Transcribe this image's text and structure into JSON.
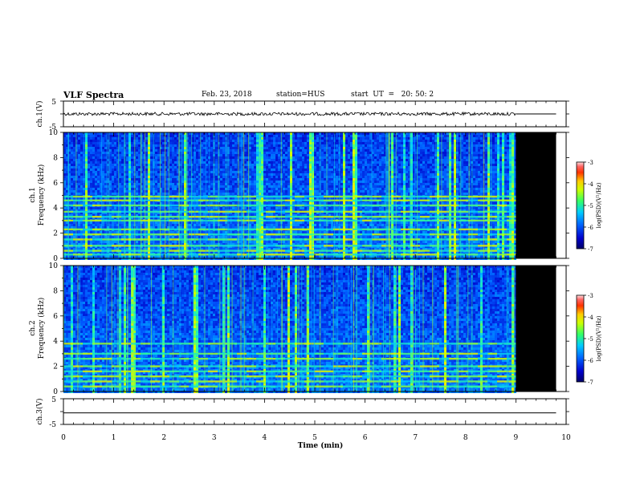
{
  "header": {
    "title": "VLF Spectra",
    "date": "Feb. 23, 2018",
    "station": "station=HUS",
    "start_time": "start  UT  =   20: 50: 2"
  },
  "chart_data": [
    {
      "type": "line",
      "id": "ch1-waveform",
      "ylabel": "ch.1(V)",
      "ylim": [
        -5,
        5
      ],
      "yticks": [
        "5",
        "-5"
      ],
      "xlim": [
        0,
        10
      ],
      "series": [
        {
          "x": [
            0,
            9,
            9.0,
            9.8
          ],
          "values": [
            0,
            0,
            0,
            0
          ]
        }
      ],
      "data_end_min": 9.0,
      "color": "#000000"
    },
    {
      "type": "heatmap",
      "id": "ch1-spectrogram",
      "ylabel": "ch.1\nFrequency  (kHz)",
      "ylabel_top": "ch.1",
      "ylabel_main": "Frequency  (kHz)",
      "ylim": [
        0,
        10
      ],
      "yticks": [
        "0",
        "2",
        "4",
        "6",
        "8",
        "10"
      ],
      "xlim": [
        0,
        10
      ],
      "data_end_min": 9.0,
      "record_end_min": 9.8,
      "bands_khz": [
        0.3,
        0.6,
        1.0,
        1.5,
        1.9,
        2.3,
        3.0,
        3.3,
        3.7,
        4.2,
        4.6,
        4.9
      ],
      "colorbar": {
        "label": "log(PSD)(V²/Hz)",
        "range": [
          -7,
          -3
        ],
        "ticks": [
          "-3",
          "-4",
          "-5",
          "-6",
          "-7"
        ]
      }
    },
    {
      "type": "heatmap",
      "id": "ch2-spectrogram",
      "ylabel": "ch.2\nFrequency  (kHz)",
      "ylabel_top": "ch.2",
      "ylabel_main": "Frequency  (kHz)",
      "ylim": [
        0,
        10
      ],
      "yticks": [
        "0",
        "2",
        "4",
        "6",
        "8",
        "10"
      ],
      "xlim": [
        0,
        10
      ],
      "data_end_min": 9.0,
      "record_end_min": 9.8,
      "bands_khz": [
        0.4,
        0.8,
        1.2,
        1.6,
        2.0,
        2.6,
        3.0,
        3.8
      ],
      "colorbar": {
        "label": "log(PSD)(V²/Hz)",
        "range": [
          -7,
          -3
        ],
        "ticks": [
          "-3",
          "-4",
          "-5",
          "-6",
          "-7"
        ]
      }
    },
    {
      "type": "line",
      "id": "ch3-waveform",
      "ylabel": "ch.3(V)",
      "ylim": [
        -5,
        5
      ],
      "yticks": [
        "5",
        "-5"
      ],
      "xlim": [
        0,
        10
      ],
      "xlabel": "Time  (min)",
      "xticks": [
        "0",
        "1",
        "2",
        "3",
        "4",
        "5",
        "6",
        "7",
        "8",
        "9",
        "10"
      ],
      "series": [
        {
          "x": [
            0,
            9.8
          ],
          "values": [
            -0.5,
            -0.5
          ]
        }
      ],
      "color": "#000000"
    }
  ]
}
